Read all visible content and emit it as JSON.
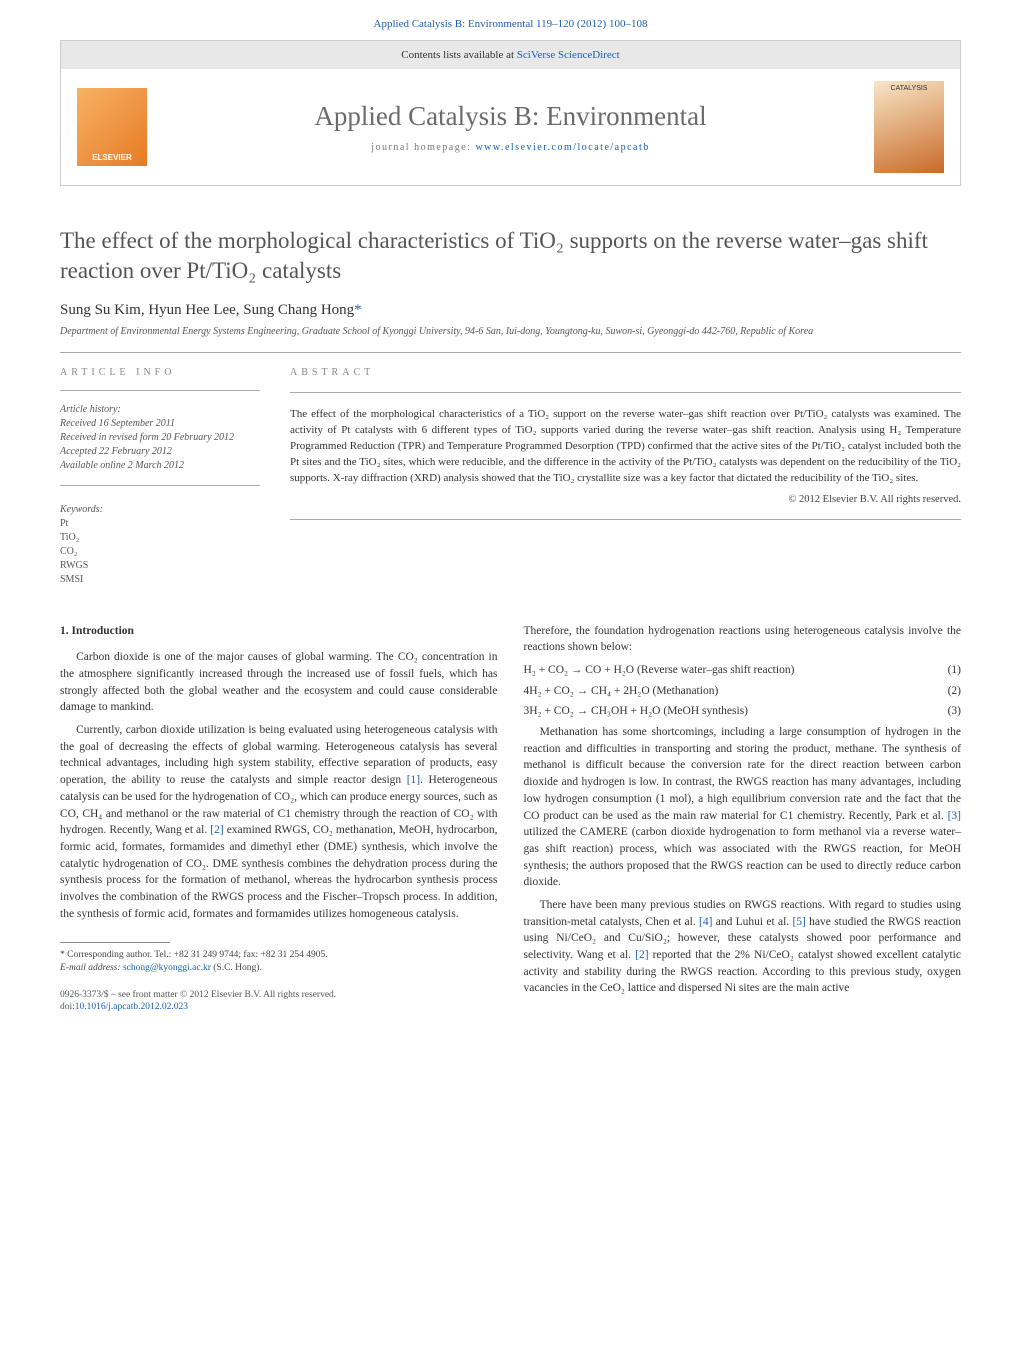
{
  "header": {
    "citation_prefix": "Applied Catalysis B: Environmental 119–120 (2012) 100–108",
    "contents_label": "Contents lists available at",
    "contents_link": "SciVerse ScienceDirect",
    "journal_title": "Applied Catalysis B: Environmental",
    "homepage_label": "journal homepage: ",
    "homepage_url": "www.elsevier.com/locate/apcatb",
    "elsevier_label": "ELSEVIER",
    "cover_label": "CATALYSIS"
  },
  "title": "The effect of the morphological characteristics of TiO₂ supports on the reverse water–gas shift reaction over Pt/TiO₂ catalysts",
  "authors": "Sung Su Kim, Hyun Hee Lee, Sung Chang Hong",
  "corr_mark": "*",
  "affiliation": "Department of Environmental Energy Systems Engineering, Graduate School of Kyonggi University, 94-6 San, Iui-dong, Youngtong-ku, Suwon-si, Gyeonggi-do 442-760, Republic of Korea",
  "info": {
    "head": "ARTICLE INFO",
    "history_label": "Article history:",
    "received": "Received 16 September 2011",
    "revised": "Received in revised form 20 February 2012",
    "accepted": "Accepted 22 February 2012",
    "online": "Available online 2 March 2012",
    "keywords_label": "Keywords:",
    "keywords": [
      "Pt",
      "TiO₂",
      "CO₂",
      "RWGS",
      "SMSI"
    ]
  },
  "abstract": {
    "head": "ABSTRACT",
    "text": "The effect of the morphological characteristics of a TiO₂ support on the reverse water–gas shift reaction over Pt/TiO₂ catalysts was examined. The activity of Pt catalysts with 6 different types of TiO₂ supports varied during the reverse water–gas shift reaction. Analysis using H₂ Temperature Programmed Reduction (TPR) and Temperature Programmed Desorption (TPD) confirmed that the active sites of the Pt/TiO₂ catalyst included both the Pt sites and the TiO₂ sites, which were reducible, and the difference in the activity of the Pt/TiO₂ catalysts was dependent on the reducibility of the TiO₂ supports. X-ray diffraction (XRD) analysis showed that the TiO₂ crystallite size was a key factor that dictated the reducibility of the TiO₂ sites.",
    "copyright": "© 2012 Elsevier B.V. All rights reserved."
  },
  "body": {
    "section_num": "1.",
    "section_title": "Introduction",
    "p1": "Carbon dioxide is one of the major causes of global warming. The CO₂ concentration in the atmosphere significantly increased through the increased use of fossil fuels, which has strongly affected both the global weather and the ecosystem and could cause considerable damage to mankind.",
    "p2a": "Currently, carbon dioxide utilization is being evaluated using heterogeneous catalysis with the goal of decreasing the effects of global warming. Heterogeneous catalysis has several technical advantages, including high system stability, effective separation of products, easy operation, the ability to reuse the catalysts and simple reactor design ",
    "c1": "[1]",
    "p2b": ". Heterogeneous catalysis can be used for the hydrogenation of CO₂, which can produce energy sources, such as CO, CH₄ and methanol or the raw material of C1 chemistry through the reaction of CO₂ with hydrogen. Recently, Wang et al. ",
    "c2": "[2]",
    "p2c": " examined RWGS, CO₂ methanation, MeOH, hydrocarbon, formic acid, formates, formamides and dimethyl ether (DME) synthesis, which involve the catalytic hydrogenation of CO₂. DME synthesis combines the dehydration process during the synthesis process for the formation of methanol, whereas the hydrocarbon synthesis process involves the combination of the RWGS process and the Fischer–Tropsch process. In addition, the synthesis of formic acid, formates and formamides utilizes homogeneous catalysis.",
    "p3": "Therefore, the foundation hydrogenation reactions using heterogeneous catalysis involve the reactions shown below:",
    "eq1": "H₂ + CO₂ → CO + H₂O (Reverse water–gas shift reaction)",
    "eq1n": "(1)",
    "eq2": "4H₂ + CO₂ → CH₄ + 2H₂O (Methanation)",
    "eq2n": "(2)",
    "eq3": "3H₂ + CO₂ → CH₃OH + H₂O (MeOH synthesis)",
    "eq3n": "(3)",
    "p4a": "Methanation has some shortcomings, including a large consumption of hydrogen in the reaction and difficulties in transporting and storing the product, methane. The synthesis of methanol is difficult because the conversion rate for the direct reaction between carbon dioxide and hydrogen is low. In contrast, the RWGS reaction has many advantages, including low hydrogen consumption (1 mol), a high equilibrium conversion rate and the fact that the CO product can be used as the main raw material for C1 chemistry. Recently, Park et al. ",
    "c3": "[3]",
    "p4b": " utilized the CAMERE (carbon dioxide hydrogenation to form methanol via a reverse water–gas shift reaction) process, which was associated with the RWGS reaction, for MeOH synthesis; the authors proposed that the RWGS reaction can be used to directly reduce carbon dioxide.",
    "p5a": "There have been many previous studies on RWGS reactions. With regard to studies using transition-metal catalysts, Chen et al. ",
    "c4": "[4]",
    "p5b": " and Luhui et al. ",
    "c5": "[5]",
    "p5c": " have studied the RWGS reaction using Ni/CeO₂ and Cu/SiO₂; however, these catalysts showed poor performance and selectivity. Wang et al. ",
    "c2b": "[2]",
    "p5d": " reported that the 2% Ni/CeO₂ catalyst showed excellent catalytic activity and stability during the RWGS reaction. According to this previous study, oxygen vacancies in the CeO₂ lattice and dispersed Ni sites are the main active"
  },
  "footnote": {
    "corr_label": "* Corresponding author. Tel.: +82 31 249 9744; fax: +82 31 254 4905.",
    "email_label": "E-mail address: ",
    "email": "schong@kyonggi.ac.kr",
    "email_who": " (S.C. Hong)."
  },
  "doi": {
    "line1": "0926-3373/$ – see front matter © 2012 Elsevier B.V. All rights reserved.",
    "line2_label": "doi:",
    "line2_link": "10.1016/j.apcatb.2012.02.023"
  },
  "colors": {
    "link": "#1a5fb4",
    "text": "#333333",
    "muted": "#888888",
    "rule": "#aaaaaa"
  }
}
